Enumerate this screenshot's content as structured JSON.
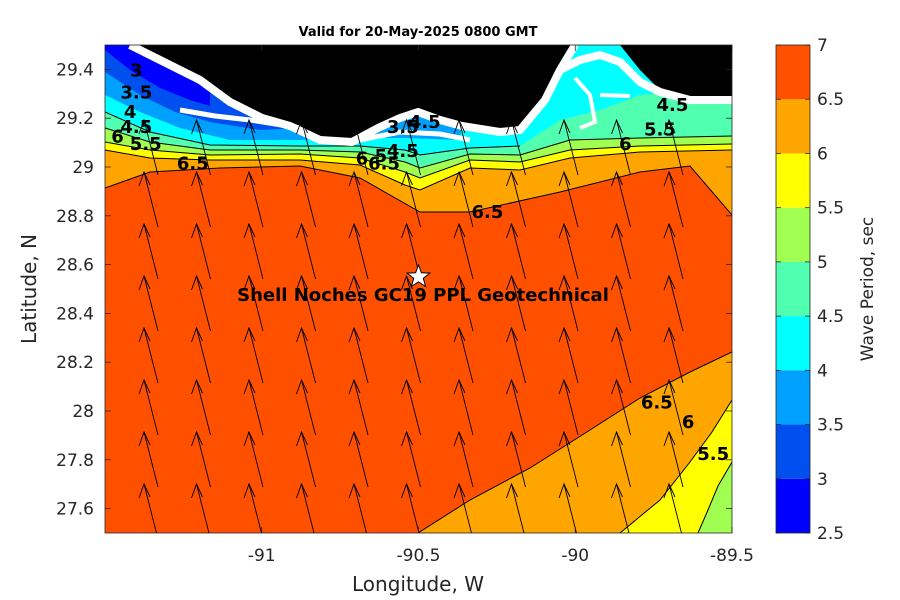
{
  "chart_data": {
    "type": "contour-map",
    "title": "Valid for 20-May-2025 0800 GMT",
    "xlabel": "Longitude, W",
    "ylabel": "Latitude, N",
    "xlim": [
      -91.5,
      -89.5
    ],
    "ylim": [
      27.5,
      29.5
    ],
    "xticks": [
      "-91",
      "-90.5",
      "-90",
      "-89.5"
    ],
    "xtick_values": [
      -91,
      -90.5,
      -90,
      -89.5
    ],
    "yticks": [
      "27.6",
      "27.8",
      "28",
      "28.2",
      "28.4",
      "28.6",
      "28.8",
      "29",
      "29.2",
      "29.4"
    ],
    "ytick_values": [
      27.6,
      27.8,
      28.0,
      28.2,
      28.4,
      28.6,
      28.8,
      29.0,
      29.2,
      29.4
    ],
    "colorbar": {
      "label": "Wave Period, sec",
      "range": [
        2.5,
        7
      ],
      "ticks": [
        "2.5",
        "3",
        "3.5",
        "4",
        "4.5",
        "5",
        "5.5",
        "6",
        "6.5",
        "7"
      ],
      "tick_values": [
        2.5,
        3,
        3.5,
        4,
        4.5,
        5,
        5.5,
        6,
        6.5,
        7
      ],
      "colors": [
        "#0000ff",
        "#0050f0",
        "#00a0ff",
        "#00ffff",
        "#50ffb0",
        "#a0ff50",
        "#ffff00",
        "#ffa500",
        "#ff5000"
      ]
    },
    "contour_labels": [
      {
        "text": "6.5",
        "lon": -91.22,
        "lat": 28.99
      },
      {
        "text": "6.5",
        "lon": -90.28,
        "lat": 28.79
      },
      {
        "text": "6.5",
        "lon": -89.74,
        "lat": 28.01
      },
      {
        "text": "6",
        "lon": -89.64,
        "lat": 27.93
      },
      {
        "text": "5.5",
        "lon": -89.56,
        "lat": 27.8
      },
      {
        "text": "6",
        "lon": -89.84,
        "lat": 29.07
      },
      {
        "text": "5.5",
        "lon": -89.73,
        "lat": 29.13
      },
      {
        "text": "4.5",
        "lon": -89.69,
        "lat": 29.23
      },
      {
        "text": "3",
        "lon": -91.4,
        "lat": 29.37
      },
      {
        "text": "3.5",
        "lon": -91.4,
        "lat": 29.28
      },
      {
        "text": "4",
        "lon": -91.42,
        "lat": 29.2
      },
      {
        "text": "4.5",
        "lon": -91.4,
        "lat": 29.14
      },
      {
        "text": "6",
        "lon": -91.46,
        "lat": 29.1
      },
      {
        "text": "5.5",
        "lon": -91.37,
        "lat": 29.07
      },
      {
        "text": "3.5",
        "lon": -90.55,
        "lat": 29.14
      },
      {
        "text": "4.5",
        "lon": -90.48,
        "lat": 29.16
      },
      {
        "text": "4.5",
        "lon": -90.55,
        "lat": 29.04
      },
      {
        "text": "5",
        "lon": -90.62,
        "lat": 29.02
      },
      {
        "text": "6",
        "lon": -90.68,
        "lat": 29.01
      },
      {
        "text": "6.5",
        "lon": -90.61,
        "lat": 28.99
      }
    ],
    "site": {
      "label": "Shell Noches   GC19 PPL  Geotechnical",
      "lon": -90.5,
      "lat": 28.55,
      "marker": "white star"
    },
    "direction_arrows": "black arrows pointing north-northwest over the sea; land masked black with white coastline"
  }
}
